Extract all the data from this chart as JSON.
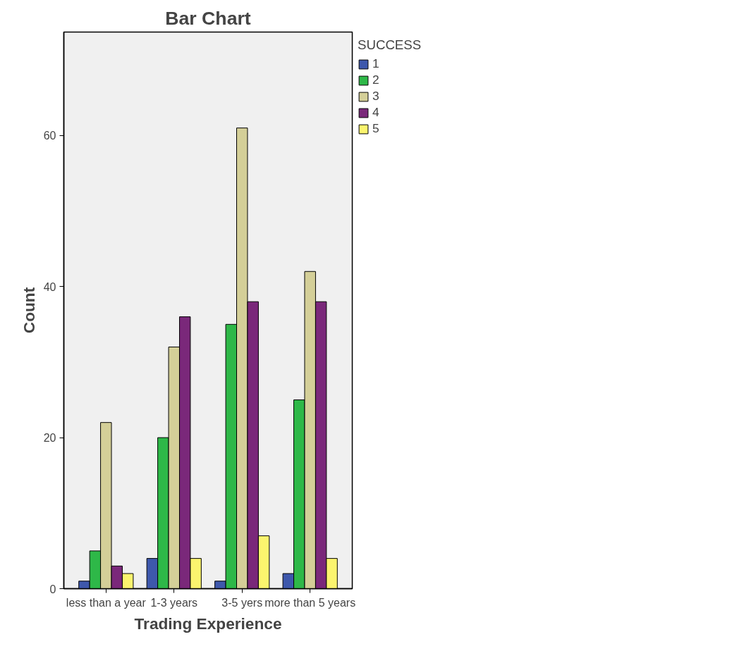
{
  "chart_data": {
    "type": "bar",
    "title": "Bar Chart",
    "xlabel": "Trading Experience",
    "ylabel": "Count",
    "legend_title": "SUCCESS",
    "legend": "right",
    "categories": [
      "less than a year",
      "1-3 years",
      "3-5 yers",
      "more than 5 years"
    ],
    "series": [
      {
        "name": "1",
        "color": "#3e58ac",
        "values": [
          1,
          4,
          1,
          2
        ]
      },
      {
        "name": "2",
        "color": "#2eb848",
        "values": [
          5,
          20,
          35,
          25
        ]
      },
      {
        "name": "3",
        "color": "#d4cf98",
        "values": [
          22,
          32,
          61,
          42
        ]
      },
      {
        "name": "4",
        "color": "#7a287a",
        "values": [
          3,
          36,
          38,
          38
        ]
      },
      {
        "name": "5",
        "color": "#fbf46e",
        "values": [
          2,
          4,
          7,
          4
        ]
      }
    ],
    "ylim": [
      0,
      73.7
    ],
    "yticks": [
      0,
      20,
      40,
      60
    ],
    "grid": false
  }
}
